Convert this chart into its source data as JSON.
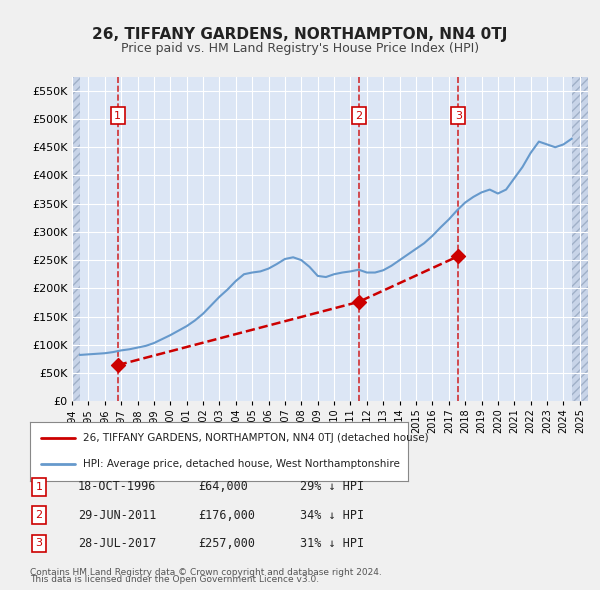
{
  "title": "26, TIFFANY GARDENS, NORTHAMPTON, NN4 0TJ",
  "subtitle": "Price paid vs. HM Land Registry's House Price Index (HPI)",
  "background_color": "#e8eef8",
  "plot_bg_color": "#dce6f5",
  "hatch_color": "#c0cce0",
  "ylim": [
    0,
    575000
  ],
  "yticks": [
    0,
    50000,
    100000,
    150000,
    200000,
    250000,
    300000,
    350000,
    400000,
    450000,
    500000,
    550000
  ],
  "ytick_labels": [
    "£0",
    "£50K",
    "£100K",
    "£150K",
    "£200K",
    "£250K",
    "£300K",
    "£350K",
    "£400K",
    "£450K",
    "£500K",
    "£550K"
  ],
  "xlim_start": 1994.0,
  "xlim_end": 2025.5,
  "hpi_years": [
    1994.5,
    1995.0,
    1995.5,
    1996.0,
    1996.5,
    1997.0,
    1997.5,
    1998.0,
    1998.5,
    1999.0,
    1999.5,
    2000.0,
    2000.5,
    2001.0,
    2001.5,
    2002.0,
    2002.5,
    2003.0,
    2003.5,
    2004.0,
    2004.5,
    2005.0,
    2005.5,
    2006.0,
    2006.5,
    2007.0,
    2007.5,
    2008.0,
    2008.5,
    2009.0,
    2009.5,
    2010.0,
    2010.5,
    2011.0,
    2011.5,
    2012.0,
    2012.5,
    2013.0,
    2013.5,
    2014.0,
    2014.5,
    2015.0,
    2015.5,
    2016.0,
    2016.5,
    2017.0,
    2017.5,
    2018.0,
    2018.5,
    2019.0,
    2019.5,
    2020.0,
    2020.5,
    2021.0,
    2021.5,
    2022.0,
    2022.5,
    2023.0,
    2023.5,
    2024.0,
    2024.5
  ],
  "hpi_values": [
    82000,
    83000,
    84000,
    85000,
    87000,
    90000,
    92000,
    95000,
    98000,
    103000,
    110000,
    117000,
    125000,
    133000,
    143000,
    155000,
    170000,
    185000,
    198000,
    213000,
    225000,
    228000,
    230000,
    235000,
    243000,
    252000,
    255000,
    250000,
    238000,
    222000,
    220000,
    225000,
    228000,
    230000,
    233000,
    228000,
    228000,
    232000,
    240000,
    250000,
    260000,
    270000,
    280000,
    293000,
    308000,
    322000,
    338000,
    352000,
    362000,
    370000,
    375000,
    368000,
    375000,
    395000,
    415000,
    440000,
    460000,
    455000,
    450000,
    455000,
    465000
  ],
  "sale_years": [
    1996.79,
    2011.5,
    2017.58
  ],
  "sale_prices": [
    64000,
    176000,
    257000
  ],
  "sale_labels": [
    "1",
    "2",
    "3"
  ],
  "sale_color": "#cc0000",
  "hpi_line_color": "#6699cc",
  "transaction_table": [
    {
      "num": "1",
      "date": "18-OCT-1996",
      "price": "£64,000",
      "hpi": "29% ↓ HPI"
    },
    {
      "num": "2",
      "date": "29-JUN-2011",
      "price": "£176,000",
      "hpi": "34% ↓ HPI"
    },
    {
      "num": "3",
      "date": "28-JUL-2017",
      "price": "£257,000",
      "hpi": "31% ↓ HPI"
    }
  ],
  "legend_line1": "26, TIFFANY GARDENS, NORTHAMPTON, NN4 0TJ (detached house)",
  "legend_line2": "HPI: Average price, detached house, West Northamptonshire",
  "footer1": "Contains HM Land Registry data © Crown copyright and database right 2024.",
  "footer2": "This data is licensed under the Open Government Licence v3.0."
}
